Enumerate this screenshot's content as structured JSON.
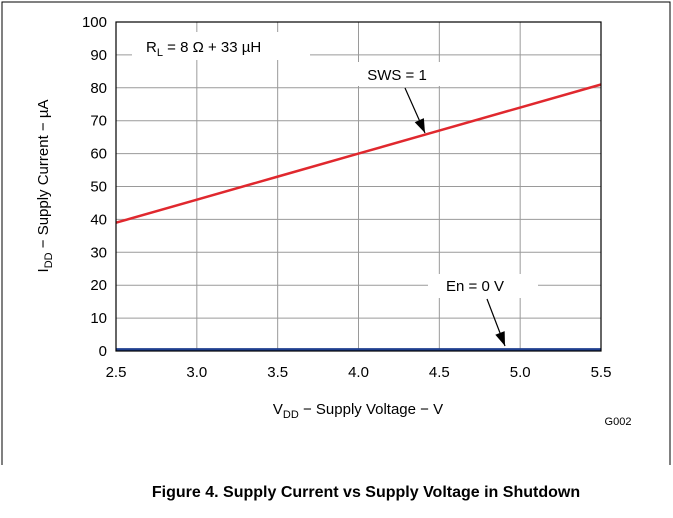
{
  "chart_data": {
    "type": "line",
    "y_label": {
      "main": "I",
      "sub": "DD",
      "rest": " − Supply Current − µA"
    },
    "x_label": {
      "main": "V",
      "sub": "DD",
      "rest": " − Supply Voltage − V"
    },
    "x": [
      2.5,
      3.0,
      3.5,
      4.0,
      4.5,
      5.0,
      5.5
    ],
    "series": [
      {
        "name": "SWS = 1",
        "color": "#e0282e",
        "values": [
          39,
          46,
          53,
          60,
          67,
          74,
          81
        ]
      },
      {
        "name": "En = 0 V",
        "color": "#1f3f8f",
        "values": [
          0.5,
          0.5,
          0.5,
          0.5,
          0.5,
          0.5,
          0.5
        ]
      }
    ],
    "xlim": [
      2.5,
      5.5
    ],
    "xticks": [
      {
        "value": 2.5,
        "label": "2.5"
      },
      {
        "value": 3.0,
        "label": "3.0"
      },
      {
        "value": 3.5,
        "label": "3.5"
      },
      {
        "value": 4.0,
        "label": "4.0"
      },
      {
        "value": 4.5,
        "label": "4.5"
      },
      {
        "value": 5.0,
        "label": "5.0"
      },
      {
        "value": 5.5,
        "label": "5.5"
      }
    ],
    "ylim": [
      0,
      100
    ],
    "yticks": [
      0,
      10,
      20,
      30,
      40,
      50,
      60,
      70,
      80,
      90,
      100
    ],
    "grid": true,
    "annotation": {
      "main": "R",
      "sub": "L",
      "rest": " = 8 Ω + 33 µH"
    },
    "code": "G002",
    "caption": "Figure 4. Supply Current vs Supply Voltage in Shutdown"
  }
}
